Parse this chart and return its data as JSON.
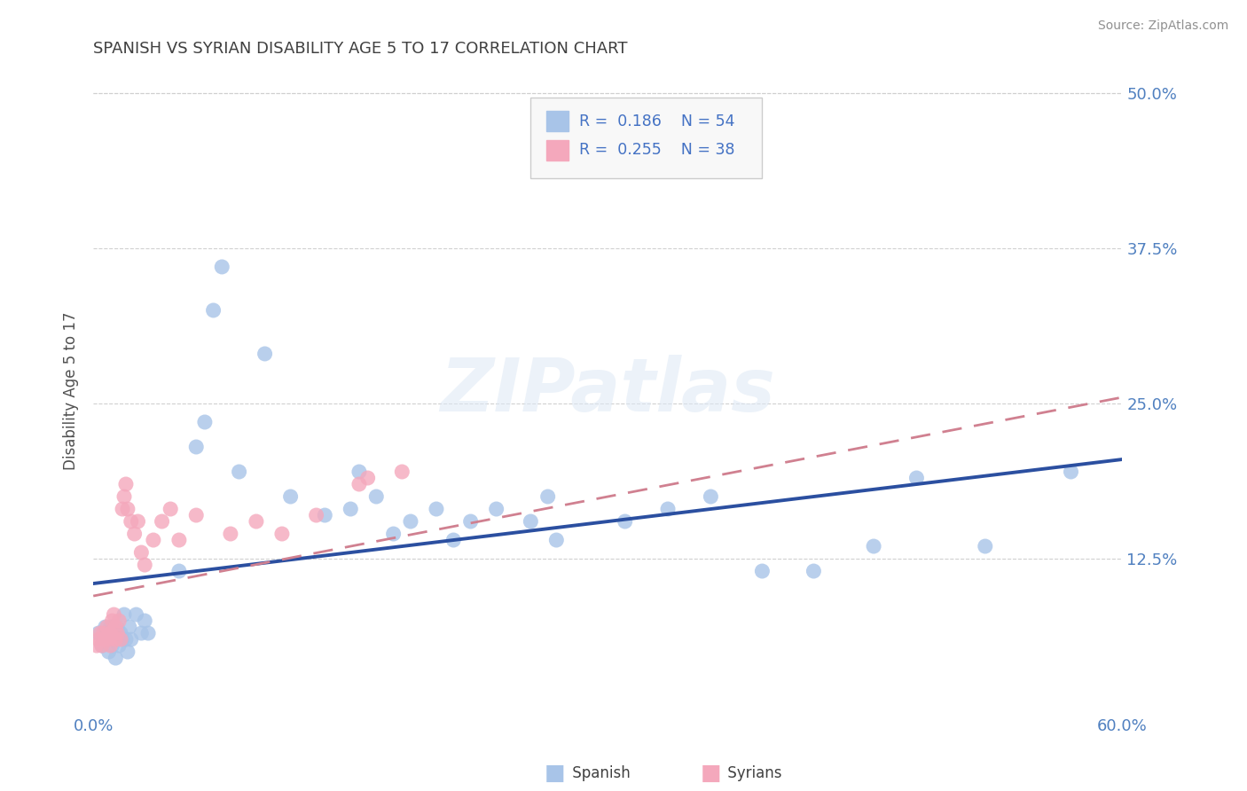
{
  "title": "SPANISH VS SYRIAN DISABILITY AGE 5 TO 17 CORRELATION CHART",
  "source": "Source: ZipAtlas.com",
  "ylabel": "Disability Age 5 to 17",
  "xlim": [
    0.0,
    0.6
  ],
  "ylim": [
    0.0,
    0.52
  ],
  "r_spanish": 0.186,
  "n_spanish": 54,
  "r_syrians": 0.255,
  "n_syrians": 38,
  "spanish_color": "#A8C4E8",
  "syrians_color": "#F4A8BC",
  "trend_spanish_color": "#2B4FA0",
  "trend_syrians_color": "#D08090",
  "background_color": "#ffffff",
  "grid_color": "#d0d0d0",
  "title_color": "#404040",
  "axis_label_color": "#5080c0",
  "legend_rn_color": "#4472C4",
  "spanish_x": [
    0.003,
    0.005,
    0.006,
    0.007,
    0.008,
    0.009,
    0.01,
    0.01,
    0.011,
    0.012,
    0.013,
    0.014,
    0.015,
    0.016,
    0.017,
    0.018,
    0.019,
    0.02,
    0.021,
    0.022,
    0.025,
    0.028,
    0.03,
    0.032,
    0.05,
    0.06,
    0.065,
    0.07,
    0.075,
    0.085,
    0.1,
    0.115,
    0.135,
    0.15,
    0.155,
    0.165,
    0.175,
    0.185,
    0.2,
    0.21,
    0.22,
    0.235,
    0.255,
    0.265,
    0.27,
    0.31,
    0.335,
    0.36,
    0.39,
    0.42,
    0.455,
    0.48,
    0.52,
    0.57
  ],
  "spanish_y": [
    0.065,
    0.055,
    0.06,
    0.07,
    0.06,
    0.05,
    0.07,
    0.06,
    0.055,
    0.065,
    0.045,
    0.07,
    0.055,
    0.065,
    0.06,
    0.08,
    0.06,
    0.05,
    0.07,
    0.06,
    0.08,
    0.065,
    0.075,
    0.065,
    0.115,
    0.215,
    0.235,
    0.325,
    0.36,
    0.195,
    0.29,
    0.175,
    0.16,
    0.165,
    0.195,
    0.175,
    0.145,
    0.155,
    0.165,
    0.14,
    0.155,
    0.165,
    0.155,
    0.175,
    0.14,
    0.155,
    0.165,
    0.175,
    0.115,
    0.115,
    0.135,
    0.19,
    0.135,
    0.195
  ],
  "syrians_x": [
    0.002,
    0.003,
    0.004,
    0.005,
    0.006,
    0.007,
    0.008,
    0.009,
    0.01,
    0.01,
    0.011,
    0.012,
    0.013,
    0.013,
    0.014,
    0.015,
    0.016,
    0.017,
    0.018,
    0.019,
    0.02,
    0.022,
    0.024,
    0.026,
    0.028,
    0.03,
    0.035,
    0.04,
    0.045,
    0.05,
    0.06,
    0.08,
    0.095,
    0.11,
    0.13,
    0.155,
    0.16,
    0.18
  ],
  "syrians_y": [
    0.055,
    0.06,
    0.065,
    0.055,
    0.065,
    0.06,
    0.07,
    0.06,
    0.055,
    0.065,
    0.075,
    0.08,
    0.07,
    0.06,
    0.065,
    0.075,
    0.06,
    0.165,
    0.175,
    0.185,
    0.165,
    0.155,
    0.145,
    0.155,
    0.13,
    0.12,
    0.14,
    0.155,
    0.165,
    0.14,
    0.16,
    0.145,
    0.155,
    0.145,
    0.16,
    0.185,
    0.19,
    0.195
  ]
}
